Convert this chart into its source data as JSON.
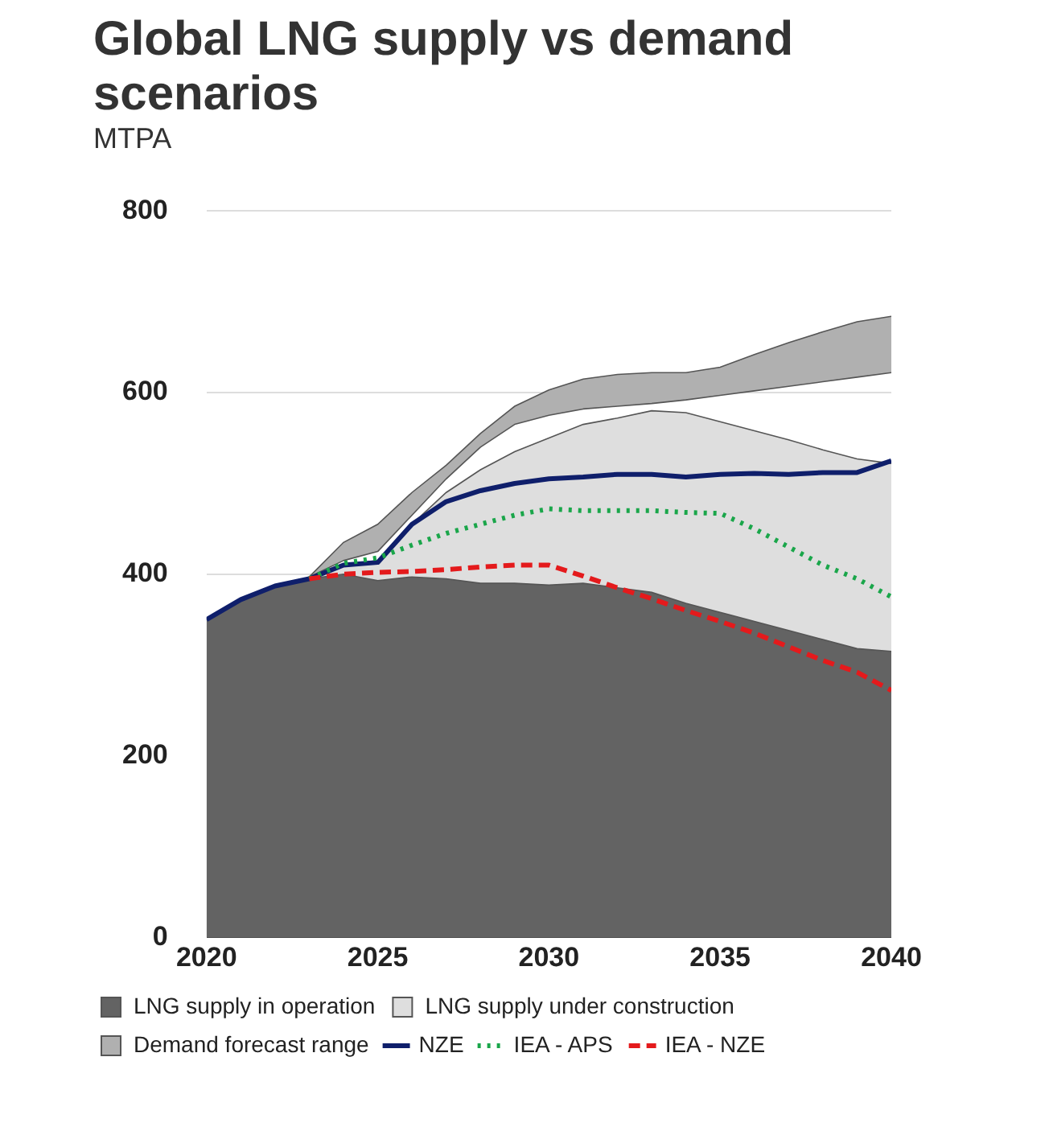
{
  "chart_data": {
    "type": "area",
    "title": "Global LNG supply vs demand scenarios",
    "ylabel": "MTPA",
    "x": [
      2020,
      2021,
      2022,
      2023,
      2024,
      2025,
      2026,
      2027,
      2028,
      2029,
      2030,
      2031,
      2032,
      2033,
      2034,
      2035,
      2036,
      2037,
      2038,
      2039,
      2040
    ],
    "xlim": [
      2020,
      2040
    ],
    "xticks": [
      2020,
      2025,
      2030,
      2035,
      2040
    ],
    "ylim": [
      0,
      800
    ],
    "yticks": [
      0,
      200,
      400,
      600,
      800
    ],
    "grid": "y",
    "legend": "bottom",
    "series": [
      {
        "name": "LNG supply in operation",
        "type": "area",
        "color": "#636363",
        "values": [
          350,
          372,
          387,
          395,
          400,
          393,
          397,
          395,
          390,
          390,
          388,
          390,
          385,
          380,
          368,
          358,
          348,
          338,
          328,
          318,
          315
        ]
      },
      {
        "name": "LNG supply under construction",
        "type": "area",
        "color": "#dedede",
        "values": [
          350,
          372,
          387,
          395,
          410,
          415,
          455,
          490,
          515,
          535,
          550,
          565,
          572,
          580,
          578,
          568,
          558,
          548,
          537,
          527,
          522
        ]
      },
      {
        "type": "line",
        "color": "#555555",
        "line_style": "solid",
        "values": [
          null,
          null,
          null,
          397,
          415,
          425,
          465,
          505,
          540,
          565,
          575,
          582,
          585,
          588,
          592,
          597,
          602,
          607,
          612,
          617,
          622
        ]
      },
      {
        "name": "Demand forecast range",
        "type": "area",
        "color": "#b0b0b0",
        "values": [
          null,
          null,
          null,
          397,
          435,
          455,
          490,
          520,
          555,
          585,
          603,
          615,
          620,
          622,
          622,
          628,
          642,
          655,
          667,
          678,
          684
        ]
      },
      {
        "name": "NZE",
        "type": "line",
        "color": "#0f1f6b",
        "line_style": "solid",
        "values": [
          350,
          372,
          387,
          395,
          410,
          413,
          455,
          480,
          492,
          500,
          505,
          507,
          510,
          510,
          507,
          510,
          511,
          510,
          512,
          512,
          525
        ]
      },
      {
        "name": "IEA - APS",
        "type": "line",
        "color": "#1aa64a",
        "line_style": "dotted",
        "values": [
          null,
          null,
          null,
          395,
          412,
          418,
          432,
          445,
          455,
          465,
          472,
          470,
          470,
          470,
          468,
          467,
          450,
          430,
          410,
          395,
          375
        ]
      },
      {
        "name": "IEA - NZE",
        "type": "line",
        "color": "#e41a1c",
        "line_style": "dashed",
        "values": [
          null,
          null,
          null,
          395,
          400,
          402,
          403,
          405,
          408,
          410,
          410,
          398,
          385,
          373,
          360,
          348,
          335,
          320,
          305,
          292,
          272
        ]
      }
    ]
  }
}
